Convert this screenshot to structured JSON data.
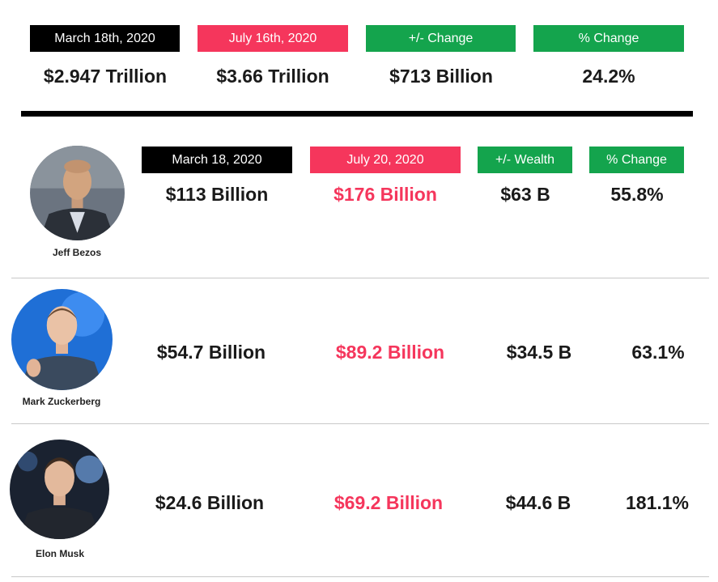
{
  "summary": {
    "headers": {
      "start": "March 18th, 2020",
      "end": "July 16th, 2020",
      "change": "+/- Change",
      "pct": "% Change"
    },
    "values": {
      "start": "$2.947 Trillion",
      "end": "$3.66 Trillion",
      "change": "$713 Billion",
      "pct": "24.2%"
    }
  },
  "detail_headers": {
    "start": "March 18, 2020",
    "end": "July 20, 2020",
    "wealth": "+/- Wealth",
    "pct": "% Change"
  },
  "people": [
    {
      "name": "Jeff Bezos",
      "start": "$113 Billion",
      "end": "$176 Billion",
      "change": "$63 B",
      "pct": "55.8%"
    },
    {
      "name": "Mark Zuckerberg",
      "start": "$54.7 Billion",
      "end": "$89.2 Billion",
      "change": "$34.5 B",
      "pct": "63.1%"
    },
    {
      "name": "Elon Musk",
      "start": "$24.6 Billion",
      "end": "$69.2 Billion",
      "change": "$44.6 B",
      "pct": "181.1%"
    }
  ],
  "colors": {
    "black": "#000000",
    "red": "#f5365c",
    "green": "#14a44d"
  }
}
